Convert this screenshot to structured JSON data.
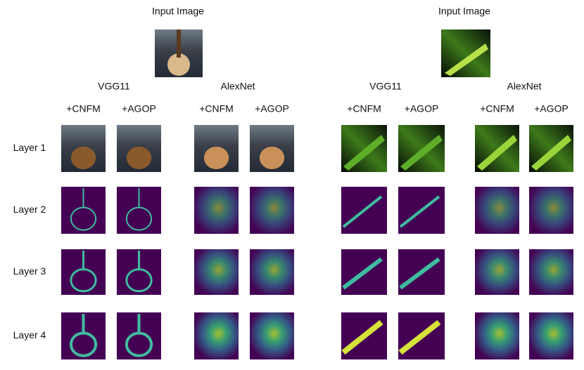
{
  "panels": [
    {
      "title": "Input Image",
      "models": [
        {
          "name": "VGG11",
          "columns": [
            "+CNFM",
            "+AGOP"
          ]
        },
        {
          "name": "AlexNet",
          "columns": [
            "+CNFM",
            "+AGOP"
          ]
        }
      ]
    },
    {
      "title": "Input Image",
      "models": [
        {
          "name": "VGG11",
          "columns": [
            "+CNFM",
            "+AGOP"
          ]
        },
        {
          "name": "AlexNet",
          "columns": [
            "+CNFM",
            "+AGOP"
          ]
        }
      ]
    }
  ],
  "rows": [
    "Layer 1",
    "Layer 2",
    "Layer 3",
    "Layer 4"
  ]
}
